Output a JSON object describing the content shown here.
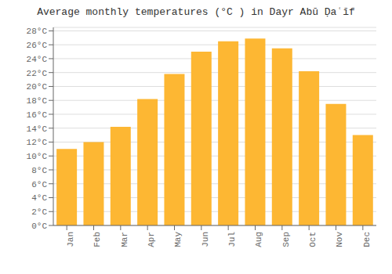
{
  "chart_data": {
    "type": "bar",
    "title": "Average monthly temperatures (°C ) in Dayr Abū Ḍaʿīf",
    "categories": [
      "Jan",
      "Feb",
      "Mar",
      "Apr",
      "May",
      "Jun",
      "Jul",
      "Aug",
      "Sep",
      "Oct",
      "Nov",
      "Dec"
    ],
    "values": [
      11.0,
      12.0,
      14.2,
      18.2,
      21.8,
      25.0,
      26.5,
      26.9,
      25.5,
      22.2,
      17.5,
      13.0
    ],
    "color": "#FDB733",
    "ylim": [
      0,
      28.5
    ],
    "yticks": [
      {
        "value": 0,
        "label": "0°C"
      },
      {
        "value": 2,
        "label": "2°C"
      },
      {
        "value": 4,
        "label": "4°C"
      },
      {
        "value": 6,
        "label": "6°C"
      },
      {
        "value": 8,
        "label": "8°C"
      },
      {
        "value": 10,
        "label": "10°C"
      },
      {
        "value": 12,
        "label": "12°C"
      },
      {
        "value": 14,
        "label": "14°C"
      },
      {
        "value": 16,
        "label": "16°C"
      },
      {
        "value": 18,
        "label": "18°C"
      },
      {
        "value": 20,
        "label": "20°C"
      },
      {
        "value": 22,
        "label": "22°C"
      },
      {
        "value": 24,
        "label": "24°C"
      },
      {
        "value": 26,
        "label": "26°C"
      },
      {
        "value": 28,
        "label": "28°C"
      }
    ],
    "grid": true
  }
}
